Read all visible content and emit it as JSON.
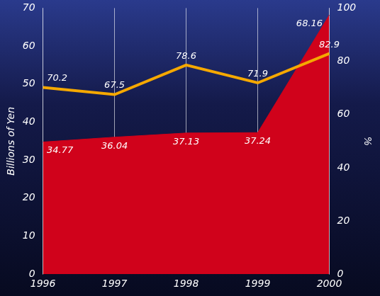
{
  "chart_data": {
    "type": "line",
    "categories": [
      "1996",
      "1997",
      "1998",
      "1999",
      "2000"
    ],
    "series": [
      {
        "type": "area",
        "color": "#d0021b",
        "values": [
          34.77,
          36.04,
          37.13,
          37.24,
          68.16
        ]
      },
      {
        "type": "line",
        "color": "#f5a800",
        "axis": "y2",
        "values": [
          70.2,
          67.5,
          78.6,
          71.9,
          82.9
        ]
      }
    ],
    "ylabel": "Billions of Yen",
    "y2label": "%",
    "ylim": [
      0,
      70
    ],
    "yticks": [
      0,
      10,
      20,
      30,
      40,
      50,
      60,
      70
    ],
    "y2lim": [
      0,
      100
    ],
    "y2ticks": [
      0,
      20,
      40,
      60,
      80,
      100
    ],
    "grid": true,
    "data_labels": true
  }
}
